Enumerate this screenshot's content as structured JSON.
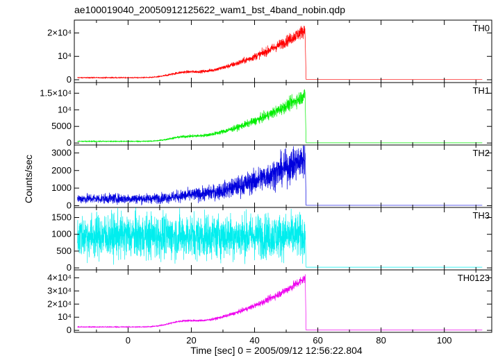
{
  "title": "ae100019040_20050912125622_wam1_bst_4band_nobin.qdp",
  "xlabel": "Time [sec] 0 = 2005/09/12 12:56:22.804",
  "ylabel": "Counts/sec",
  "colors": {
    "TH0": "#ff0000",
    "TH1": "#00ee00",
    "TH2": "#0000dd",
    "TH3": "#00eeee",
    "TH0123": "#ee00ee"
  },
  "chart_data": [
    {
      "type": "line",
      "label": "TH0",
      "xlim": [
        -17,
        115
      ],
      "ylim": [
        -1200,
        25500
      ],
      "yticks": [
        {
          "value": 0,
          "label": "0"
        },
        {
          "value": 10000,
          "label": "10⁴"
        },
        {
          "value": 20000,
          "label": "2×10⁴"
        }
      ],
      "profile": {
        "base": 900,
        "amp": 20500,
        "hump": 1400,
        "noise": 0.1,
        "post": 120,
        "peak_noise": 0.07
      }
    },
    {
      "type": "line",
      "label": "TH1",
      "xlim": [
        -17,
        115
      ],
      "ylim": [
        -600,
        18200
      ],
      "yticks": [
        {
          "value": 0,
          "label": "0"
        },
        {
          "value": 5000,
          "label": "5000"
        },
        {
          "value": 10000,
          "label": "10⁴"
        },
        {
          "value": 15000,
          "label": "1.5×10⁴"
        }
      ],
      "profile": {
        "base": 500,
        "amp": 14000,
        "hump": 800,
        "noise": 0.12,
        "post": 60,
        "peak_noise": 0.08
      }
    },
    {
      "type": "line",
      "label": "TH2",
      "xlim": [
        -17,
        115
      ],
      "ylim": [
        -100,
        3450
      ],
      "yticks": [
        {
          "value": 0,
          "label": "0"
        },
        {
          "value": 1000,
          "label": "1000"
        },
        {
          "value": 2000,
          "label": "2000"
        },
        {
          "value": 3000,
          "label": "3000"
        }
      ],
      "profile": {
        "base": 400,
        "amp": 2300,
        "hump": 60,
        "noise": 0.35,
        "post": 20,
        "peak_noise": 0.2
      }
    },
    {
      "type": "line",
      "label": "TH3",
      "xlim": [
        -17,
        115
      ],
      "ylim": [
        -60,
        1800
      ],
      "yticks": [
        {
          "value": 0,
          "label": "0"
        },
        {
          "value": 500,
          "label": "500"
        },
        {
          "value": 1000,
          "label": "1000"
        },
        {
          "value": 1500,
          "label": "1500"
        }
      ],
      "profile": {
        "base": 950,
        "amp": 0,
        "hump": 0,
        "noise": 0.35,
        "post": 20,
        "peak_noise": 0.35
      }
    },
    {
      "type": "line",
      "label": "TH0123",
      "xlim": [
        -17,
        115
      ],
      "ylim": [
        -1500,
        46000
      ],
      "yticks": [
        {
          "value": 0,
          "label": "0"
        },
        {
          "value": 10000,
          "label": "10⁴"
        },
        {
          "value": 20000,
          "label": "2×10⁴"
        },
        {
          "value": 30000,
          "label": "3×10⁴"
        },
        {
          "value": 40000,
          "label": "4×10⁴"
        }
      ],
      "profile": {
        "base": 2600,
        "amp": 37000,
        "hump": 3000,
        "noise": 0.06,
        "post": 200,
        "peak_noise": 0.05
      }
    }
  ],
  "x_time_range": [
    -16,
    112
  ],
  "x_drop_time": 56,
  "xticks": [
    {
      "value": 0,
      "label": "0"
    },
    {
      "value": 20,
      "label": "20"
    },
    {
      "value": 40,
      "label": "40"
    },
    {
      "value": 60,
      "label": "60"
    },
    {
      "value": 80,
      "label": "80"
    },
    {
      "value": 100,
      "label": "100"
    }
  ]
}
